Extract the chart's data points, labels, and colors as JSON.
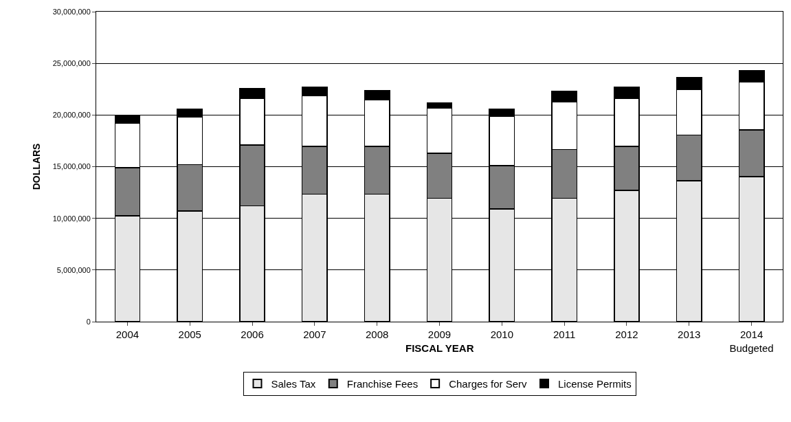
{
  "chart_data": {
    "type": "bar",
    "stacked": true,
    "xlabel": "FISCAL YEAR",
    "ylabel": "DOLLARS",
    "categories": [
      "2004",
      "2005",
      "2006",
      "2007",
      "2008",
      "2009",
      "2010",
      "2011",
      "2012",
      "2013",
      "2014\nBudgeted"
    ],
    "series": [
      {
        "name": "Sales Tax",
        "color": "#e6e6e6",
        "values": [
          10250000,
          10700000,
          11200000,
          12350000,
          12350000,
          11950000,
          10900000,
          11950000,
          12700000,
          13650000,
          14050000
        ]
      },
      {
        "name": "Franchise Fees",
        "color": "#808080",
        "values": [
          4650000,
          4500000,
          5900000,
          4600000,
          4600000,
          4350000,
          4200000,
          4700000,
          4250000,
          4400000,
          4500000
        ]
      },
      {
        "name": "Charges for Serv",
        "color": "#ffffff",
        "values": [
          4300000,
          4600000,
          4500000,
          4900000,
          4500000,
          4350000,
          4800000,
          4650000,
          4650000,
          4450000,
          4650000
        ]
      },
      {
        "name": "License Permits",
        "color": "#000000",
        "values": [
          750000,
          750000,
          1000000,
          850000,
          900000,
          500000,
          700000,
          1000000,
          1100000,
          1100000,
          1100000
        ]
      }
    ],
    "ylim": [
      0,
      30000000
    ],
    "yticks": [
      0,
      {
        "value": 5000000,
        "label": "5,000,000"
      },
      {
        "value": 10000000,
        "label": "10,000,000"
      },
      {
        "value": 15000000,
        "label": "15,000,000"
      },
      {
        "value": 20000000,
        "label": "20,000,000"
      },
      {
        "value": 25000000,
        "label": "25,000,000"
      },
      {
        "value": 30000000,
        "label": "30,000,000"
      }
    ],
    "grid": "y",
    "legend": "bottom"
  }
}
